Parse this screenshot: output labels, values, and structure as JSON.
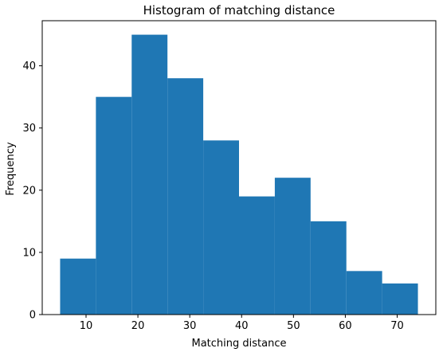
{
  "chart_data": {
    "type": "bar",
    "title": "Histogram of matching distance",
    "xlabel": "Matching distance",
    "ylabel": "Frequency",
    "bin_edges": [
      5,
      11.9,
      18.8,
      25.7,
      32.6,
      39.5,
      46.4,
      53.3,
      60.2,
      67.1,
      74
    ],
    "values": [
      9,
      35,
      45,
      38,
      28,
      19,
      22,
      15,
      7,
      5
    ],
    "xlim": [
      1.55,
      77.45
    ],
    "ylim": [
      0,
      47.25
    ],
    "xticks": [
      "10",
      "20",
      "30",
      "40",
      "50",
      "60",
      "70"
    ],
    "xtick_values": [
      10,
      20,
      30,
      40,
      50,
      60,
      70
    ],
    "yticks": [
      "0",
      "10",
      "20",
      "30",
      "40"
    ],
    "ytick_values": [
      0,
      10,
      20,
      30,
      40
    ],
    "bar_color": "#1f77b4",
    "grid": false,
    "legend": "none"
  }
}
